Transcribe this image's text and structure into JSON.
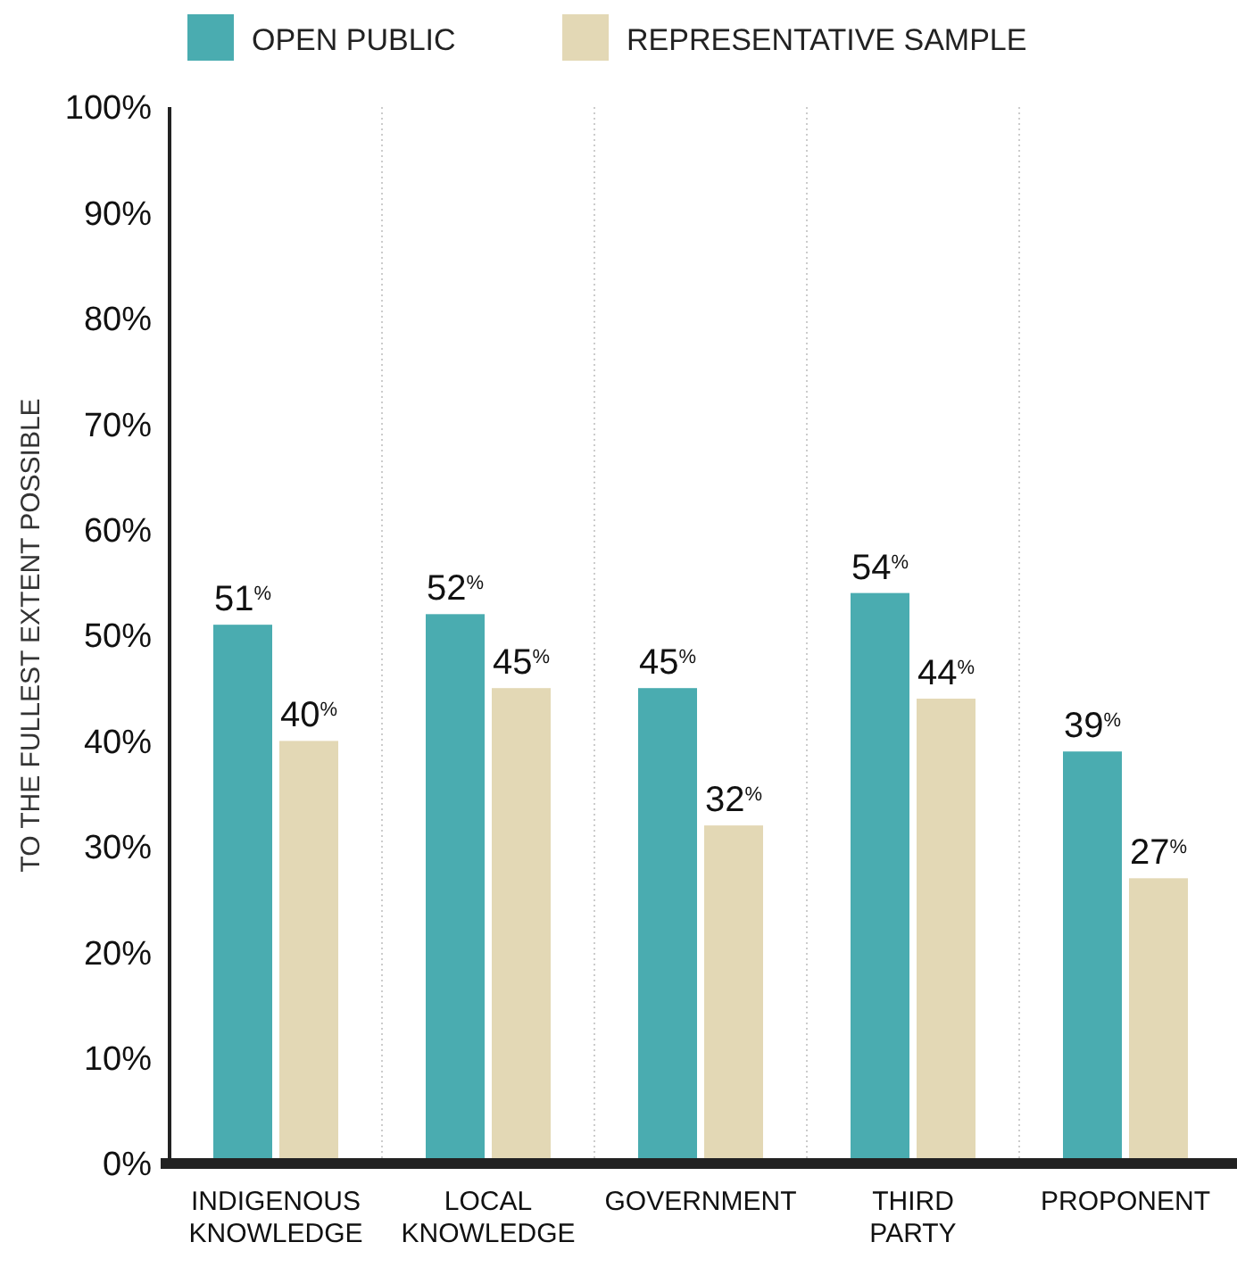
{
  "chart_data": {
    "type": "bar",
    "ylabel": "TO THE FULLEST EXTENT POSSIBLE",
    "categories": [
      "INDIGENOUS\nKNOWLEDGE",
      "LOCAL\nKNOWLEDGE",
      "GOVERNMENT",
      "THIRD\nPARTY",
      "PROPONENT"
    ],
    "series": [
      {
        "name": "OPEN PUBLIC",
        "color": "#4aacb0",
        "values": [
          51,
          52,
          45,
          54,
          39
        ],
        "value_labels": [
          "51$^{%}$",
          "52$^{%}$",
          "45$^{%}$",
          "54$^{%}$",
          "39$^{%}$"
        ]
      },
      {
        "name": "REPRESENTATIVE SAMPLE",
        "color": "#e3d8b5",
        "values": [
          40,
          45,
          32,
          44,
          27
        ],
        "value_labels": [
          "40$^{%}$",
          "45$^{%}$",
          "32$^{%}$",
          "44$^{%}$",
          "27$^{%}$"
        ]
      }
    ],
    "ylim": [
      0,
      100
    ],
    "yticks": [
      {
        "value": 0,
        "label": "0%"
      },
      {
        "value": 10,
        "label": "10%"
      },
      {
        "value": 20,
        "label": "20%"
      },
      {
        "value": 30,
        "label": "30%"
      },
      {
        "value": 40,
        "label": "40%"
      },
      {
        "value": 50,
        "label": "50%"
      },
      {
        "value": 60,
        "label": "60%"
      },
      {
        "value": 70,
        "label": "70%"
      },
      {
        "value": 80,
        "label": "80%"
      },
      {
        "value": 90,
        "label": "90%"
      },
      {
        "value": 100,
        "label": "100%"
      }
    ],
    "grid": "x",
    "legend": "top"
  }
}
